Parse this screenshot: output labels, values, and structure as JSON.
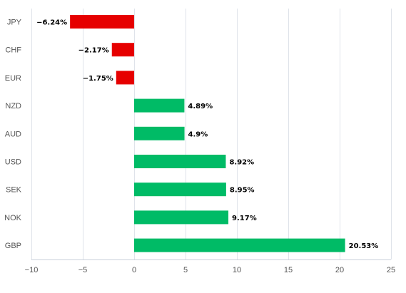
{
  "chart_data": {
    "type": "bar",
    "orientation": "horizontal",
    "categories": [
      "JPY",
      "CHF",
      "EUR",
      "NZD",
      "AUD",
      "USD",
      "SEK",
      "NOK",
      "GBP"
    ],
    "values": [
      -6.24,
      -2.17,
      -1.75,
      4.89,
      4.9,
      8.92,
      8.95,
      9.17,
      20.53
    ],
    "data_labels": [
      "−6.24%",
      "−2.17%",
      "−1.75%",
      "4.89%",
      "4.9%",
      "8.92%",
      "8.95%",
      "9.17%",
      "20.53%"
    ],
    "x_ticks": [
      -10,
      -5,
      0,
      5,
      10,
      15,
      20,
      25
    ],
    "x_tick_labels": [
      "−10",
      "−5",
      "0",
      "5",
      "10",
      "15",
      "20",
      "25"
    ],
    "xlim": [
      -10,
      25
    ],
    "grid": true,
    "title": "",
    "xlabel": "",
    "ylabel": "",
    "colors": {
      "positive": "#00bb66",
      "negative": "#e60000",
      "grid": "#dfe3ea"
    }
  }
}
